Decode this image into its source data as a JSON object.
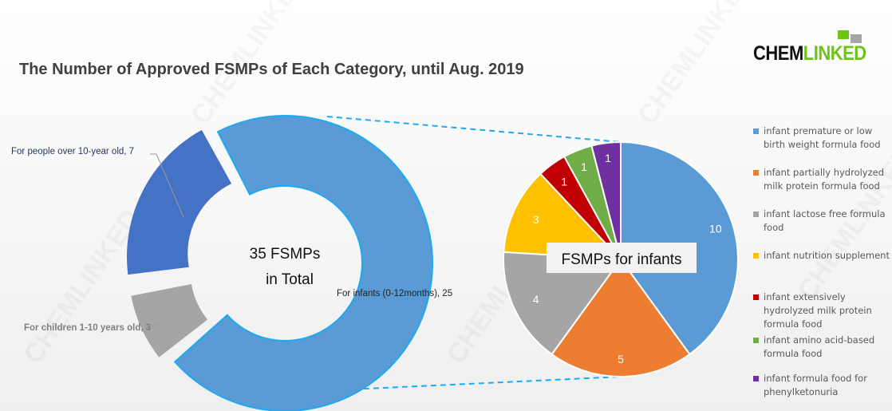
{
  "chart_data": [
    {
      "type": "donut",
      "title": "The Number of Approved FSMPs of Each Category, until Aug. 2019",
      "center_label": [
        "35 FSMPs",
        "in Total"
      ],
      "categories": [
        "For infants (0-12months)",
        "For children 1-10 years old",
        "For people over 10-year old"
      ],
      "values": [
        25,
        3,
        7
      ],
      "data_labels": [
        "For infants (0-12months), 25",
        "For children 1-10 years old, 3",
        "For people over 10-year old, 7"
      ],
      "colors": [
        "#5b9bd5",
        "#a5a5a5",
        "#4472c4"
      ]
    },
    {
      "type": "pie",
      "title": "FSMPs for infants",
      "categories": [
        "infant premature or low birth weight formula food",
        "infant partially hydrolyzed milk protein formula food",
        "infant lactose free formula food",
        "infant nutrition supplement",
        "infant extensively hydrolyzed milk protein formula food",
        "infant amino acid-based formula food",
        "infant formula food for phenylketonuria"
      ],
      "values": [
        10,
        5,
        4,
        3,
        1,
        1,
        1
      ],
      "colors": [
        "#5b9bd5",
        "#ed7d31",
        "#a5a5a5",
        "#ffc000",
        "#c00000",
        "#70ad47",
        "#7030a0"
      ],
      "legend_position": "right"
    }
  ],
  "logo": {
    "part1": "CHEM",
    "part2": "LINKED"
  },
  "watermark": "CHEMLINKED"
}
